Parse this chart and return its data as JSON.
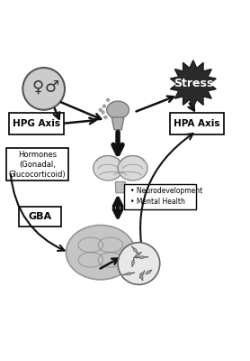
{
  "bg_color": "#ffffff",
  "fig_width": 2.78,
  "fig_height": 4.0,
  "dpi": 100,
  "stress_text": "Stress",
  "hpg_label": "HPG Axis",
  "hpa_label": "HPA Axis",
  "hormones_label": "Hormones\n(Gonadal,\nGlucocorticoid)",
  "gba_label": "GBA",
  "neuro_label": "• Neurodevelopment\n• Mental Health",
  "box_color": "#ffffff",
  "box_edge": "#000000",
  "text_color": "#000000",
  "arrow_color": "#111111",
  "gray_light": "#b0b0b0",
  "gray_med": "#888888",
  "gray_dark": "#555555"
}
